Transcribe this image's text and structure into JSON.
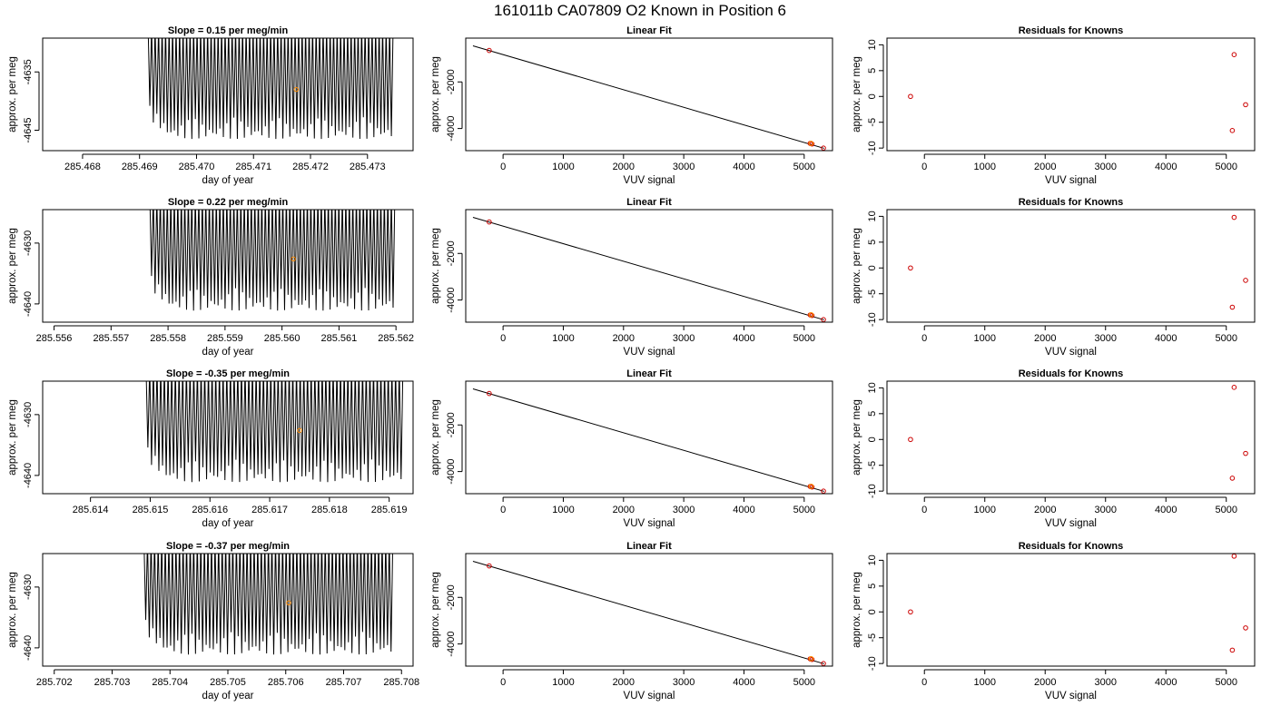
{
  "figure_title": "161011b      CA07809    O2 Known in Position  6",
  "colors": {
    "trace": "#000000",
    "highlight": "#ff8c00",
    "residual_point": "#cc0000",
    "axis": "#000000"
  },
  "chart_data": [
    {
      "row": 1,
      "time_series": {
        "type": "line",
        "title": "Slope =  0.15  per meg/min",
        "xlabel": "day of year",
        "ylabel": "approx. per meg",
        "xlim": [
          285.4673,
          285.4738
        ],
        "ylim": [
          -4648.5,
          -4629.2
        ],
        "xticks": [
          "285.468",
          "285.469",
          "285.470",
          "285.471",
          "285.472",
          "285.473"
        ],
        "xtick_values": [
          285.468,
          285.469,
          285.47,
          285.471,
          285.472,
          285.473
        ],
        "yticks": [
          "-4635",
          "-4645"
        ],
        "ytick_values": [
          -4635,
          -4645
        ],
        "trace_x_range": [
          285.46915,
          285.47345
        ],
        "trace_center": -4638.0,
        "trace_amplitude_bottom": 8.5,
        "trace_amplitude_top": 11.0,
        "cycles": 70,
        "highlight_point": {
          "x": 285.47175,
          "y": -4638.0
        }
      },
      "linear_fit": {
        "type": "scatter",
        "title": "Linear Fit",
        "xlabel": "VUV signal",
        "ylabel": "approx. per meg",
        "xlim": [
          -620,
          5470
        ],
        "ylim": [
          -4950,
          -120
        ],
        "xticks": [
          "0",
          "1000",
          "2000",
          "3000",
          "4000",
          "5000"
        ],
        "xtick_values": [
          0,
          1000,
          2000,
          3000,
          4000,
          5000
        ],
        "yticks": [
          "-2000",
          "-4000"
        ],
        "ytick_values": [
          -2000,
          -4000
        ],
        "fit_line": {
          "x": [
            -500,
            5330
          ],
          "y": [
            -450,
            -4850
          ]
        },
        "points": [
          {
            "x": -230,
            "y": -650
          },
          {
            "x": 5100,
            "y": -4640
          },
          {
            "x": 5130,
            "y": -4665
          },
          {
            "x": 5320,
            "y": -4840
          }
        ],
        "highlight_point": {
          "x": 5115,
          "y": -4638
        }
      },
      "residuals": {
        "type": "scatter",
        "title": "Residuals for Knowns",
        "xlabel": "VUV signal",
        "ylabel": "approx. per meg",
        "xlim": [
          -620,
          5470
        ],
        "ylim": [
          -10.5,
          11.3
        ],
        "xticks": [
          "0",
          "1000",
          "2000",
          "3000",
          "4000",
          "5000"
        ],
        "xtick_values": [
          0,
          1000,
          2000,
          3000,
          4000,
          5000
        ],
        "yticks": [
          "-10",
          "-5",
          "0",
          "5",
          "10"
        ],
        "ytick_values": [
          -10,
          -5,
          0,
          5,
          10
        ],
        "points": [
          {
            "x": -230,
            "y": 0
          },
          {
            "x": 5130,
            "y": 8.1
          },
          {
            "x": 5320,
            "y": -1.6
          },
          {
            "x": 5100,
            "y": -6.6
          }
        ]
      }
    },
    {
      "row": 2,
      "time_series": {
        "type": "line",
        "title": "Slope =  0.22  per meg/min",
        "xlabel": "day of year",
        "ylabel": "approx. per meg",
        "xlim": [
          285.5558,
          285.5623
        ],
        "ylim": [
          -4643.0,
          -4624.5
        ],
        "xticks": [
          "285.556",
          "285.557",
          "285.558",
          "285.559",
          "285.560",
          "285.561",
          "285.562"
        ],
        "xtick_values": [
          285.556,
          285.557,
          285.558,
          285.559,
          285.56,
          285.561,
          285.562
        ],
        "yticks": [
          "-4630",
          "-4640"
        ],
        "ytick_values": [
          -4630,
          -4640
        ],
        "trace_x_range": [
          285.55768,
          285.56198
        ],
        "trace_center": -4632.6,
        "trace_amplitude_bottom": 8.5,
        "trace_amplitude_top": 10.5,
        "cycles": 70,
        "highlight_point": {
          "x": 285.5602,
          "y": -4632.6
        }
      },
      "linear_fit": {
        "type": "scatter",
        "title": "Linear Fit",
        "xlabel": "VUV signal",
        "ylabel": "approx. per meg",
        "xlim": [
          -620,
          5470
        ],
        "ylim": [
          -4950,
          -120
        ],
        "xticks": [
          "0",
          "1000",
          "2000",
          "3000",
          "4000",
          "5000"
        ],
        "xtick_values": [
          0,
          1000,
          2000,
          3000,
          4000,
          5000
        ],
        "yticks": [
          "-2000",
          "-4000"
        ],
        "ytick_values": [
          -2000,
          -4000
        ],
        "fit_line": {
          "x": [
            -500,
            5330
          ],
          "y": [
            -450,
            -4850
          ]
        },
        "points": [
          {
            "x": -230,
            "y": -650
          },
          {
            "x": 5100,
            "y": -4640
          },
          {
            "x": 5130,
            "y": -4665
          },
          {
            "x": 5320,
            "y": -4840
          }
        ],
        "highlight_point": {
          "x": 5115,
          "y": -4633
        }
      },
      "residuals": {
        "type": "scatter",
        "title": "Residuals for Knowns",
        "xlabel": "VUV signal",
        "ylabel": "approx. per meg",
        "xlim": [
          -620,
          5470
        ],
        "ylim": [
          -10.5,
          11.3
        ],
        "xticks": [
          "0",
          "1000",
          "2000",
          "3000",
          "4000",
          "5000"
        ],
        "xtick_values": [
          0,
          1000,
          2000,
          3000,
          4000,
          5000
        ],
        "yticks": [
          "-10",
          "-5",
          "0",
          "5",
          "10"
        ],
        "ytick_values": [
          -10,
          -5,
          0,
          5,
          10
        ],
        "points": [
          {
            "x": -230,
            "y": 0
          },
          {
            "x": 5130,
            "y": 9.8
          },
          {
            "x": 5320,
            "y": -2.4
          },
          {
            "x": 5100,
            "y": -7.6
          }
        ]
      }
    },
    {
      "row": 3,
      "time_series": {
        "type": "line",
        "title": "Slope =  -0.35  per meg/min",
        "xlabel": "day of year",
        "ylabel": "approx. per meg",
        "xlim": [
          285.6132,
          285.6194
        ],
        "ylim": [
          -4643.0,
          -4624.5
        ],
        "xticks": [
          "285.614",
          "285.615",
          "285.616",
          "285.617",
          "285.618",
          "285.619"
        ],
        "xtick_values": [
          285.614,
          285.615,
          285.616,
          285.617,
          285.618,
          285.619
        ],
        "yticks": [
          "-4630",
          "-4640"
        ],
        "ytick_values": [
          -4630,
          -4640
        ],
        "trace_x_range": [
          285.61493,
          285.61923
        ],
        "trace_center": -4632.6,
        "trace_amplitude_bottom": 8.5,
        "trace_amplitude_top": 10.5,
        "cycles": 70,
        "highlight_point": {
          "x": 285.6175,
          "y": -4632.6
        }
      },
      "linear_fit": {
        "type": "scatter",
        "title": "Linear Fit",
        "xlabel": "VUV signal",
        "ylabel": "approx. per meg",
        "xlim": [
          -620,
          5470
        ],
        "ylim": [
          -4950,
          -120
        ],
        "xticks": [
          "0",
          "1000",
          "2000",
          "3000",
          "4000",
          "5000"
        ],
        "xtick_values": [
          0,
          1000,
          2000,
          3000,
          4000,
          5000
        ],
        "yticks": [
          "-2000",
          "-4000"
        ],
        "ytick_values": [
          -2000,
          -4000
        ],
        "fit_line": {
          "x": [
            -500,
            5330
          ],
          "y": [
            -450,
            -4850
          ]
        },
        "points": [
          {
            "x": -230,
            "y": -650
          },
          {
            "x": 5100,
            "y": -4640
          },
          {
            "x": 5130,
            "y": -4665
          },
          {
            "x": 5320,
            "y": -4840
          }
        ],
        "highlight_point": {
          "x": 5115,
          "y": -4633
        }
      },
      "residuals": {
        "type": "scatter",
        "title": "Residuals for Knowns",
        "xlabel": "VUV signal",
        "ylabel": "approx. per meg",
        "xlim": [
          -620,
          5470
        ],
        "ylim": [
          -10.5,
          11.3
        ],
        "xticks": [
          "0",
          "1000",
          "2000",
          "3000",
          "4000",
          "5000"
        ],
        "xtick_values": [
          0,
          1000,
          2000,
          3000,
          4000,
          5000
        ],
        "yticks": [
          "-10",
          "-5",
          "0",
          "5",
          "10"
        ],
        "ytick_values": [
          -10,
          -5,
          0,
          5,
          10
        ],
        "points": [
          {
            "x": -230,
            "y": 0
          },
          {
            "x": 5130,
            "y": 10.1
          },
          {
            "x": 5320,
            "y": -2.7
          },
          {
            "x": 5100,
            "y": -7.5
          }
        ]
      }
    },
    {
      "row": 4,
      "time_series": {
        "type": "line",
        "title": "Slope =  -0.37  per meg/min",
        "xlabel": "day of year",
        "ylabel": "approx. per meg",
        "xlim": [
          285.7018,
          285.7082
        ],
        "ylim": [
          -4643.0,
          -4624.5
        ],
        "xticks": [
          "285.702",
          "285.703",
          "285.704",
          "285.705",
          "285.706",
          "285.707",
          "285.708"
        ],
        "xtick_values": [
          285.702,
          285.703,
          285.704,
          285.705,
          285.706,
          285.707,
          285.708
        ],
        "yticks": [
          "-4630",
          "-4640"
        ],
        "ytick_values": [
          -4630,
          -4640
        ],
        "trace_x_range": [
          285.70355,
          285.70785
        ],
        "trace_center": -4632.6,
        "trace_amplitude_bottom": 8.5,
        "trace_amplitude_top": 10.5,
        "cycles": 70,
        "highlight_point": {
          "x": 285.70605,
          "y": -4632.6
        }
      },
      "linear_fit": {
        "type": "scatter",
        "title": "Linear Fit",
        "xlabel": "VUV signal",
        "ylabel": "approx. per meg",
        "xlim": [
          -620,
          5470
        ],
        "ylim": [
          -4950,
          -120
        ],
        "xticks": [
          "0",
          "1000",
          "2000",
          "3000",
          "4000",
          "5000"
        ],
        "xtick_values": [
          0,
          1000,
          2000,
          3000,
          4000,
          5000
        ],
        "yticks": [
          "-2000",
          "-4000"
        ],
        "ytick_values": [
          -2000,
          -4000
        ],
        "fit_line": {
          "x": [
            -500,
            5330
          ],
          "y": [
            -450,
            -4850
          ]
        },
        "points": [
          {
            "x": -230,
            "y": -650
          },
          {
            "x": 5100,
            "y": -4640
          },
          {
            "x": 5130,
            "y": -4665
          },
          {
            "x": 5320,
            "y": -4840
          }
        ],
        "highlight_point": {
          "x": 5115,
          "y": -4633
        }
      },
      "residuals": {
        "type": "scatter",
        "title": "Residuals for Knowns",
        "xlabel": "VUV signal",
        "ylabel": "approx. per meg",
        "xlim": [
          -620,
          5470
        ],
        "ylim": [
          -10.5,
          11.3
        ],
        "xticks": [
          "0",
          "1000",
          "2000",
          "3000",
          "4000",
          "5000"
        ],
        "xtick_values": [
          0,
          1000,
          2000,
          3000,
          4000,
          5000
        ],
        "yticks": [
          "-10",
          "-5",
          "0",
          "5",
          "10"
        ],
        "ytick_values": [
          -10,
          -5,
          0,
          5,
          10
        ],
        "points": [
          {
            "x": -230,
            "y": 0
          },
          {
            "x": 5130,
            "y": 10.8
          },
          {
            "x": 5320,
            "y": -3.1
          },
          {
            "x": 5100,
            "y": -7.4
          }
        ]
      }
    }
  ]
}
